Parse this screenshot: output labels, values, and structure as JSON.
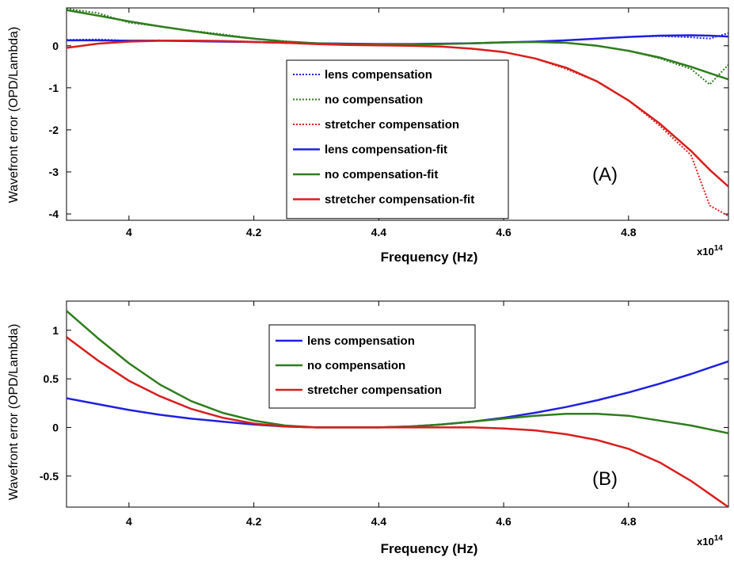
{
  "chart_data": [
    {
      "panel": "(A)",
      "type": "line",
      "xlabel": "Frequency (Hz)",
      "ylabel": "Wavefront error (OPD/Lambda)",
      "x_exponent_base": "x10",
      "x_exponent_power": "14",
      "xlim": [
        3.9,
        4.96
      ],
      "ylim": [
        -4.15,
        0.9
      ],
      "xticks": [
        4,
        4.2,
        4.4,
        4.6,
        4.8
      ],
      "xtick_labels": [
        "4",
        "4.2",
        "4.4",
        "4.6",
        "4.8"
      ],
      "yticks": [
        0,
        -1,
        -2,
        -3,
        -4
      ],
      "ytick_labels": [
        "0",
        "-1",
        "-2",
        "-3",
        "-4"
      ],
      "legend": [
        "lens compensation",
        "no compensation",
        "stretcher compensation",
        "lens compensation-fit",
        "no compensation-fit",
        "stretcher compensation-fit"
      ],
      "legend_position": "center",
      "x": [
        3.9,
        3.95,
        4.0,
        4.05,
        4.1,
        4.15,
        4.2,
        4.25,
        4.3,
        4.35,
        4.4,
        4.45,
        4.5,
        4.55,
        4.6,
        4.65,
        4.7,
        4.75,
        4.8,
        4.85,
        4.9,
        4.93,
        4.96
      ],
      "series": [
        {
          "name": "lens compensation",
          "style": "dotted",
          "color": "#2020e0",
          "values": [
            0.14,
            0.15,
            0.12,
            0.13,
            0.11,
            0.1,
            0.09,
            0.07,
            0.06,
            0.05,
            0.04,
            0.04,
            0.05,
            0.06,
            0.08,
            0.1,
            0.13,
            0.17,
            0.21,
            0.23,
            0.2,
            0.17,
            0.3
          ]
        },
        {
          "name": "no compensation",
          "style": "dotted",
          "color": "#2e7d1e",
          "values": [
            0.88,
            0.78,
            0.55,
            0.46,
            0.36,
            0.27,
            0.17,
            0.11,
            0.06,
            0.04,
            0.03,
            0.03,
            0.04,
            0.06,
            0.08,
            0.09,
            0.07,
            0.0,
            -0.12,
            -0.3,
            -0.55,
            -0.92,
            -0.45
          ]
        },
        {
          "name": "stretcher compensation",
          "style": "dotted",
          "color": "#e02020",
          "values": [
            -0.05,
            0.05,
            0.1,
            0.12,
            0.13,
            0.12,
            0.1,
            0.07,
            0.04,
            0.02,
            0.02,
            0.0,
            -0.02,
            -0.07,
            -0.15,
            -0.3,
            -0.55,
            -0.85,
            -1.3,
            -1.9,
            -2.6,
            -3.8,
            -4.05
          ]
        },
        {
          "name": "lens compensation-fit",
          "style": "solid",
          "color": "#2020e0",
          "values": [
            0.13,
            0.13,
            0.12,
            0.12,
            0.11,
            0.1,
            0.09,
            0.07,
            0.06,
            0.05,
            0.04,
            0.04,
            0.05,
            0.06,
            0.08,
            0.1,
            0.13,
            0.17,
            0.21,
            0.24,
            0.25,
            0.24,
            0.22
          ]
        },
        {
          "name": "no compensation-fit",
          "style": "solid",
          "color": "#2e7d1e",
          "values": [
            0.85,
            0.72,
            0.58,
            0.46,
            0.35,
            0.25,
            0.17,
            0.1,
            0.06,
            0.04,
            0.03,
            0.03,
            0.04,
            0.06,
            0.08,
            0.09,
            0.07,
            0.0,
            -0.12,
            -0.28,
            -0.5,
            -0.65,
            -0.8
          ]
        },
        {
          "name": "stretcher compensation-fit",
          "style": "solid",
          "color": "#d81e1e",
          "values": [
            -0.05,
            0.05,
            0.1,
            0.12,
            0.12,
            0.11,
            0.09,
            0.07,
            0.04,
            0.02,
            0.01,
            0.0,
            -0.02,
            -0.07,
            -0.15,
            -0.3,
            -0.52,
            -0.85,
            -1.3,
            -1.85,
            -2.5,
            -2.95,
            -3.35
          ]
        }
      ]
    },
    {
      "panel": "(B)",
      "type": "line",
      "xlabel": "Frequency (Hz)",
      "ylabel": "Wavefront error (OPD/Lambda)",
      "x_exponent_base": "x10",
      "x_exponent_power": "14",
      "xlim": [
        3.9,
        4.96
      ],
      "ylim": [
        -0.82,
        1.3
      ],
      "xticks": [
        4,
        4.2,
        4.4,
        4.6,
        4.8
      ],
      "xtick_labels": [
        "4",
        "4.2",
        "4.4",
        "4.6",
        "4.8"
      ],
      "yticks": [
        1,
        0.5,
        0,
        -0.5
      ],
      "ytick_labels": [
        "1",
        "0.5",
        "0",
        "-0.5"
      ],
      "legend": [
        "lens compensation",
        "no compensation",
        "stretcher compensation"
      ],
      "legend_position": "top-center",
      "x": [
        3.9,
        3.95,
        4.0,
        4.05,
        4.1,
        4.15,
        4.2,
        4.25,
        4.3,
        4.35,
        4.4,
        4.45,
        4.5,
        4.55,
        4.6,
        4.65,
        4.7,
        4.75,
        4.8,
        4.85,
        4.9,
        4.96
      ],
      "series": [
        {
          "name": "lens compensation",
          "style": "solid",
          "color": "#2020e0",
          "values": [
            0.3,
            0.24,
            0.18,
            0.13,
            0.09,
            0.06,
            0.03,
            0.01,
            0.0,
            0.0,
            0.0,
            0.01,
            0.03,
            0.06,
            0.1,
            0.15,
            0.21,
            0.28,
            0.36,
            0.45,
            0.55,
            0.68
          ]
        },
        {
          "name": "no compensation",
          "style": "solid",
          "color": "#2e7d1e",
          "values": [
            1.2,
            0.92,
            0.66,
            0.44,
            0.27,
            0.15,
            0.07,
            0.02,
            0.0,
            0.0,
            0.0,
            0.01,
            0.03,
            0.06,
            0.09,
            0.12,
            0.14,
            0.14,
            0.12,
            0.07,
            0.02,
            -0.06
          ]
        },
        {
          "name": "stretcher compensation",
          "style": "solid",
          "color": "#d81e1e",
          "values": [
            0.93,
            0.69,
            0.48,
            0.32,
            0.19,
            0.1,
            0.04,
            0.01,
            0.0,
            0.0,
            0.0,
            0.0,
            0.0,
            0.0,
            -0.01,
            -0.03,
            -0.07,
            -0.13,
            -0.22,
            -0.36,
            -0.55,
            -0.82
          ]
        }
      ]
    }
  ]
}
